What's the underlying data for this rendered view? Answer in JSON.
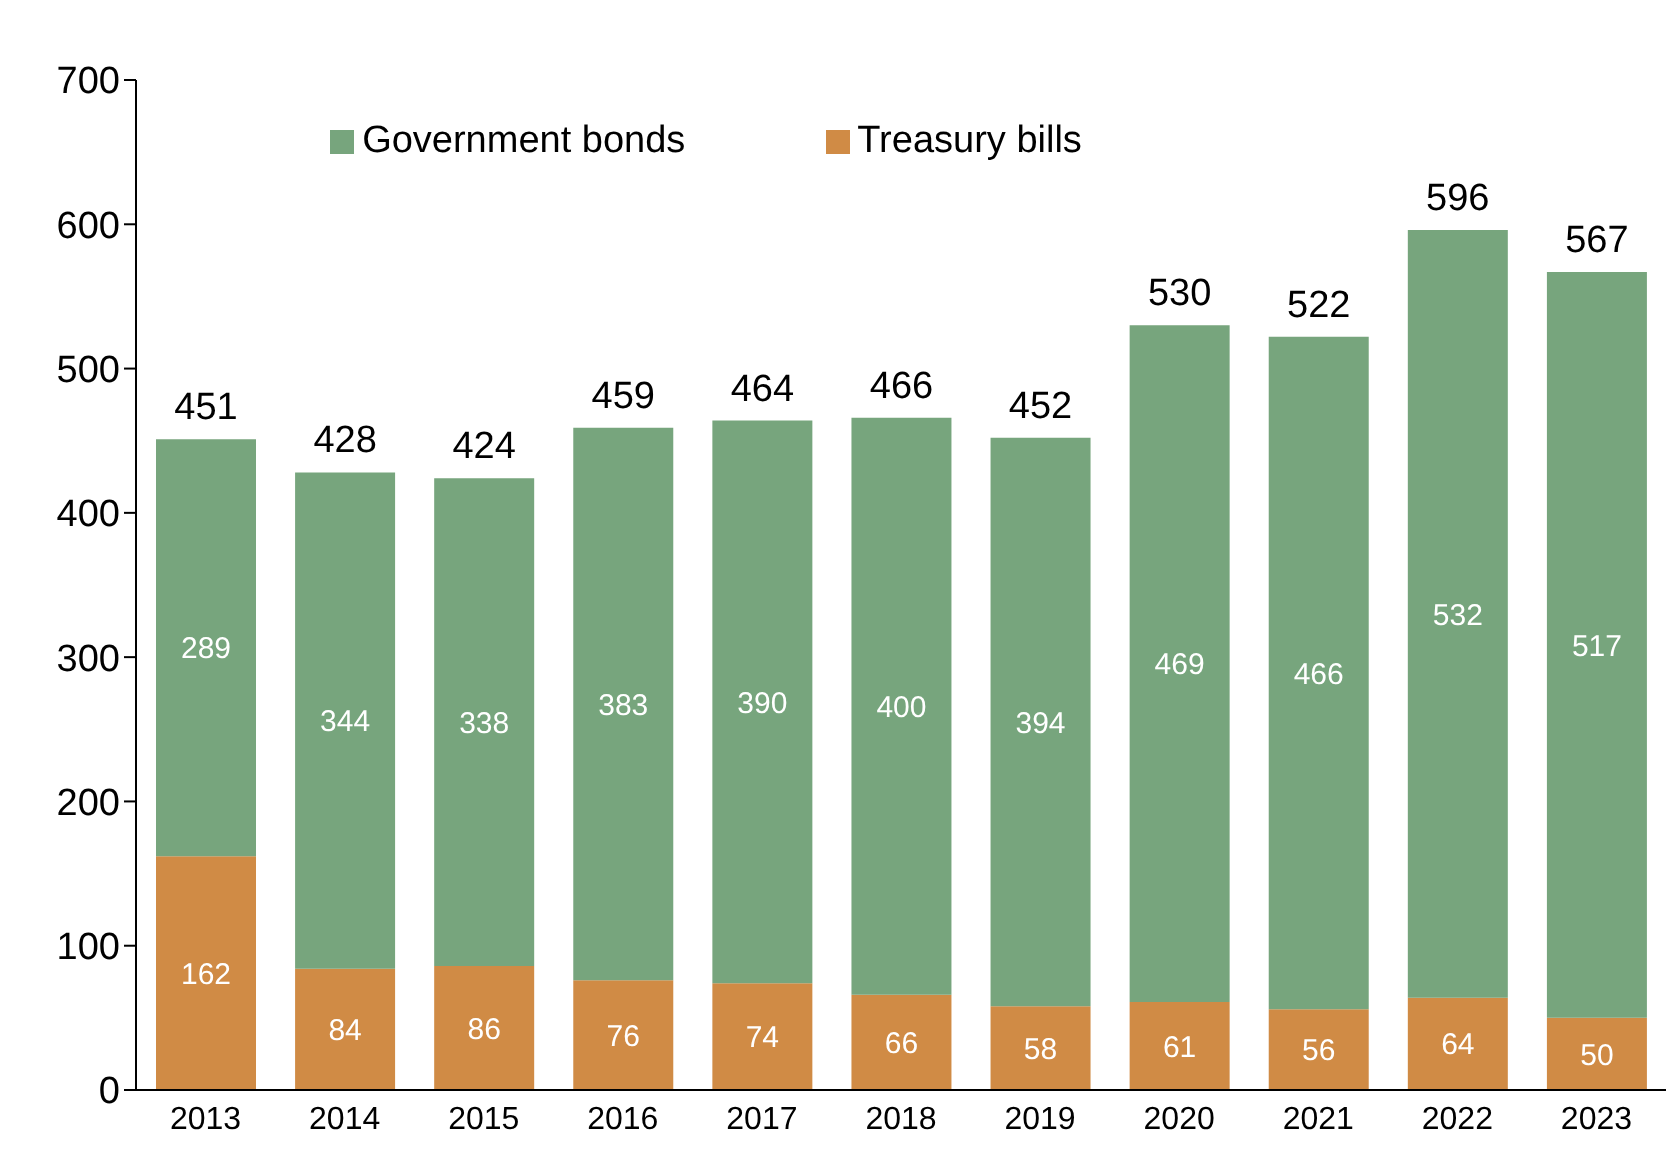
{
  "chart_data": {
    "type": "bar",
    "stacked": true,
    "categories": [
      "2013",
      "2014",
      "2015",
      "2016",
      "2017",
      "2018",
      "2019",
      "2020",
      "2021",
      "2022",
      "2023"
    ],
    "series": [
      {
        "name": "Treasury bills",
        "color": "#d08b45",
        "values": [
          162,
          84,
          86,
          76,
          74,
          66,
          58,
          61,
          56,
          64,
          50
        ]
      },
      {
        "name": "Government bonds",
        "color": "#77a57d",
        "values": [
          289,
          344,
          338,
          383,
          390,
          400,
          394,
          469,
          466,
          532,
          517
        ]
      }
    ],
    "totals": [
      "451",
      "428",
      "424",
      "459",
      "464",
      "466",
      "452",
      "530",
      "522",
      "596",
      "567"
    ],
    "data_labels": true,
    "ylim": [
      0,
      700
    ],
    "yticks": [
      0,
      100,
      200,
      300,
      400,
      500,
      600,
      700
    ],
    "legend": "top",
    "grid": false
  }
}
